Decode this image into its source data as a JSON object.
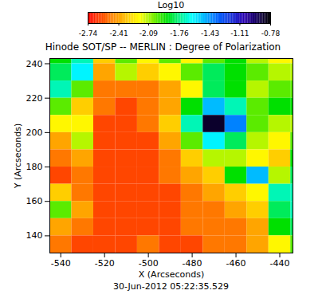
{
  "chart_data": {
    "type": "heatmap",
    "title": "Hinode SOT/SP -- MERLIN : Degree of Polarization",
    "xlabel": "X (Arcseconds)",
    "ylabel": "Y (Arcseconds)",
    "caption": "30-Jun-2012 05:22:35.529",
    "x": [
      -540,
      -530,
      -520,
      -510,
      -500,
      -490,
      -480,
      -470,
      -460,
      -450,
      -440,
      -430
    ],
    "y": [
      245,
      235,
      225,
      215,
      205,
      195,
      185,
      175,
      165,
      155,
      145,
      135
    ],
    "values": [
      [
        -1.9,
        -1.7,
        -2.3,
        -2.0,
        -2.2,
        -2.0,
        -2.2,
        -2.0,
        -1.9,
        -2.1,
        -2.2,
        -2.2
      ],
      [
        -1.8,
        -1.6,
        -2.4,
        -2.1,
        -2.3,
        -2.2,
        -2.0,
        -1.8,
        -1.9,
        -2.0,
        -2.1,
        -2.1
      ],
      [
        -1.7,
        -2.0,
        -2.5,
        -2.5,
        -2.5,
        -2.4,
        -2.2,
        -1.8,
        -1.9,
        -2.1,
        -2.0,
        -2.0
      ],
      [
        -2.0,
        -2.3,
        -2.5,
        -2.6,
        -2.5,
        -2.4,
        -1.9,
        -1.5,
        -1.7,
        -2.0,
        -1.9,
        -1.9
      ],
      [
        -2.2,
        -2.2,
        -2.6,
        -2.6,
        -2.5,
        -2.3,
        -1.7,
        -0.85,
        -1.4,
        -2.0,
        -2.1,
        -2.1
      ],
      [
        -2.4,
        -2.1,
        -2.6,
        -2.6,
        -2.6,
        -2.4,
        -2.0,
        -1.6,
        -1.8,
        -2.1,
        -2.2,
        -2.0
      ],
      [
        -2.5,
        -2.4,
        -2.6,
        -2.6,
        -2.6,
        -2.5,
        -2.3,
        -2.1,
        -2.1,
        -2.2,
        -2.3,
        -1.9
      ],
      [
        -2.6,
        -2.5,
        -2.6,
        -2.6,
        -2.6,
        -2.5,
        -2.4,
        -2.3,
        -1.9,
        -1.5,
        -2.1,
        -1.8
      ],
      [
        -2.3,
        -2.5,
        -2.6,
        -2.6,
        -2.6,
        -2.6,
        -2.5,
        -2.4,
        -2.3,
        -2.2,
        -1.7,
        -1.7
      ],
      [
        -2.0,
        -2.4,
        -2.6,
        -2.6,
        -2.6,
        -2.6,
        -2.5,
        -2.5,
        -2.4,
        -2.3,
        -1.8,
        -1.7
      ],
      [
        -2.4,
        -2.5,
        -2.6,
        -2.6,
        -2.6,
        -2.6,
        -2.5,
        -2.5,
        -2.5,
        -2.4,
        -1.9,
        -1.8
      ],
      [
        -2.5,
        -2.6,
        -2.6,
        -2.6,
        -2.5,
        -2.6,
        -2.6,
        -2.5,
        -2.5,
        -2.4,
        -2.2,
        -2.0
      ]
    ],
    "xlim": [
      -545,
      -434
    ],
    "ylim": [
      130,
      243
    ],
    "xticks": [
      -540,
      -520,
      -500,
      -480,
      -460,
      -440
    ],
    "yticks": [
      140,
      160,
      180,
      200,
      220,
      240
    ],
    "colorbar": {
      "label": "Log10",
      "range": [
        -2.74,
        -0.78
      ],
      "ticks": [
        -2.74,
        -2.41,
        -2.09,
        -1.76,
        -1.43,
        -1.11,
        -0.78
      ]
    }
  }
}
